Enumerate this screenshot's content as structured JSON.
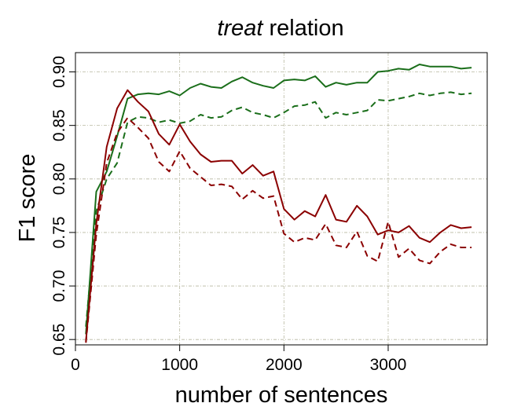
{
  "chart_data": {
    "type": "line",
    "title_em": "treat",
    "title_rest": " relation",
    "xlabel": "number of sentences",
    "ylabel": "F1 score",
    "xlim": [
      0,
      3950
    ],
    "ylim": [
      0.645,
      0.918
    ],
    "xticks": [
      0,
      1000,
      2000,
      3000
    ],
    "xtick_labels": [
      "0",
      "1000",
      "2000",
      "3000"
    ],
    "yticks": [
      0.65,
      0.7,
      0.75,
      0.8,
      0.85,
      0.9
    ],
    "ytick_labels": [
      "0.65",
      "0.70",
      "0.75",
      "0.80",
      "0.85",
      "0.90"
    ],
    "grid": true,
    "legend": "none",
    "x": [
      100,
      200,
      300,
      400,
      500,
      600,
      700,
      800,
      900,
      1000,
      1100,
      1200,
      1300,
      1400,
      1500,
      1600,
      1700,
      1800,
      1900,
      2000,
      2100,
      2200,
      2300,
      2400,
      2500,
      2600,
      2700,
      2800,
      2900,
      3000,
      3100,
      3200,
      3300,
      3400,
      3500,
      3600,
      3700,
      3800
    ],
    "series": [
      {
        "color": "#1a6e1a",
        "dash": "solid",
        "values": [
          0.655,
          0.788,
          0.807,
          0.84,
          0.875,
          0.879,
          0.88,
          0.879,
          0.882,
          0.878,
          0.885,
          0.889,
          0.886,
          0.885,
          0.891,
          0.895,
          0.89,
          0.887,
          0.885,
          0.892,
          0.893,
          0.892,
          0.896,
          0.886,
          0.89,
          0.888,
          0.89,
          0.89,
          0.9,
          0.901,
          0.903,
          0.902,
          0.907,
          0.905,
          0.905,
          0.905,
          0.903,
          0.904
        ]
      },
      {
        "color": "#1a6e1a",
        "dash": "dashed",
        "values": [
          0.662,
          0.77,
          0.8,
          0.815,
          0.853,
          0.858,
          0.857,
          0.853,
          0.855,
          0.852,
          0.854,
          0.86,
          0.857,
          0.858,
          0.864,
          0.867,
          0.862,
          0.86,
          0.857,
          0.862,
          0.868,
          0.869,
          0.872,
          0.857,
          0.862,
          0.86,
          0.862,
          0.864,
          0.874,
          0.873,
          0.875,
          0.877,
          0.88,
          0.878,
          0.88,
          0.881,
          0.879,
          0.88
        ]
      },
      {
        "color": "#8b0000",
        "dash": "solid",
        "values": [
          0.648,
          0.758,
          0.83,
          0.866,
          0.883,
          0.872,
          0.863,
          0.842,
          0.832,
          0.851,
          0.835,
          0.823,
          0.816,
          0.817,
          0.817,
          0.805,
          0.813,
          0.803,
          0.807,
          0.772,
          0.762,
          0.77,
          0.765,
          0.785,
          0.762,
          0.76,
          0.775,
          0.765,
          0.748,
          0.752,
          0.75,
          0.756,
          0.745,
          0.741,
          0.75,
          0.757,
          0.754,
          0.755
        ]
      },
      {
        "color": "#8b0000",
        "dash": "dashed",
        "values": [
          0.647,
          0.748,
          0.815,
          0.843,
          0.857,
          0.848,
          0.838,
          0.816,
          0.807,
          0.826,
          0.81,
          0.802,
          0.794,
          0.795,
          0.793,
          0.781,
          0.789,
          0.782,
          0.784,
          0.749,
          0.741,
          0.745,
          0.743,
          0.758,
          0.738,
          0.736,
          0.751,
          0.728,
          0.723,
          0.76,
          0.727,
          0.735,
          0.724,
          0.721,
          0.732,
          0.739,
          0.736,
          0.736
        ]
      }
    ]
  }
}
